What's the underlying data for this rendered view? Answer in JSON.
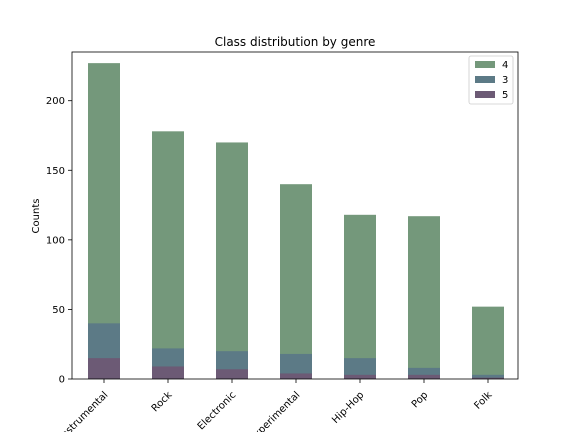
{
  "chart_data": {
    "type": "bar",
    "title": "Class distribution by genre",
    "xlabel": "",
    "ylabel": "Counts",
    "ylim": [
      0,
      235
    ],
    "yticks": [
      0,
      50,
      100,
      150,
      200
    ],
    "categories": [
      "Instrumental",
      "Rock",
      "Electronic",
      "Experimental",
      "Hip-Hop",
      "Pop",
      "Folk"
    ],
    "overlay": true,
    "series": [
      {
        "name": "4",
        "color": "#74987b",
        "values": [
          227,
          178,
          170,
          140,
          118,
          117,
          52
        ]
      },
      {
        "name": "3",
        "color": "#5c7a86",
        "values": [
          40,
          22,
          20,
          18,
          15,
          8,
          3
        ]
      },
      {
        "name": "5",
        "color": "#6c5a75",
        "values": [
          15,
          9,
          7,
          4,
          3,
          3,
          1
        ]
      }
    ],
    "legend_position": "top-right",
    "grid": false
  }
}
